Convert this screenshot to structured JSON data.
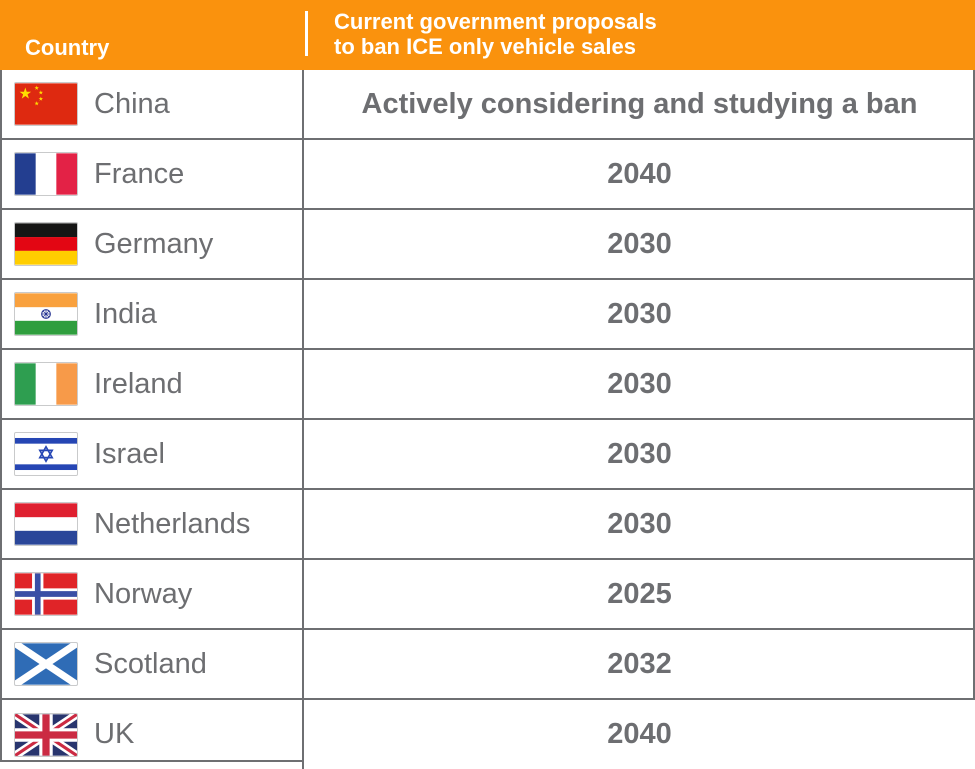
{
  "header": {
    "country_label": "Country",
    "proposal_label_line1": "Current government proposals",
    "proposal_label_line2": "to ban ICE only vehicle sales"
  },
  "rows": [
    {
      "country": "China",
      "flag": "china",
      "proposal": "Actively considering and studying a ban"
    },
    {
      "country": "France",
      "flag": "france",
      "proposal": "2040"
    },
    {
      "country": "Germany",
      "flag": "germany",
      "proposal": "2030"
    },
    {
      "country": "India",
      "flag": "india",
      "proposal": "2030"
    },
    {
      "country": "Ireland",
      "flag": "ireland",
      "proposal": "2030"
    },
    {
      "country": "Israel",
      "flag": "israel",
      "proposal": "2030"
    },
    {
      "country": "Netherlands",
      "flag": "netherlands",
      "proposal": "2030"
    },
    {
      "country": "Norway",
      "flag": "norway",
      "proposal": "2025"
    },
    {
      "country": "Scotland",
      "flag": "scotland",
      "proposal": "2032"
    },
    {
      "country": "UK",
      "flag": "uk",
      "proposal": "2040"
    }
  ],
  "colors": {
    "header_bg": "#FA920D",
    "header_text": "#FFFFFF",
    "body_text": "#6D6E71",
    "border": "#6E6F72"
  },
  "chart_data": {
    "type": "table",
    "columns": [
      "Country",
      "Current government proposals to ban ICE only vehicle sales"
    ],
    "rows": [
      [
        "China",
        "Actively considering and studying a ban"
      ],
      [
        "France",
        "2040"
      ],
      [
        "Germany",
        "2030"
      ],
      [
        "India",
        "2030"
      ],
      [
        "Ireland",
        "2030"
      ],
      [
        "Israel",
        "2030"
      ],
      [
        "Netherlands",
        "2030"
      ],
      [
        "Norway",
        "2025"
      ],
      [
        "Scotland",
        "2032"
      ],
      [
        "UK",
        "2040"
      ]
    ]
  }
}
